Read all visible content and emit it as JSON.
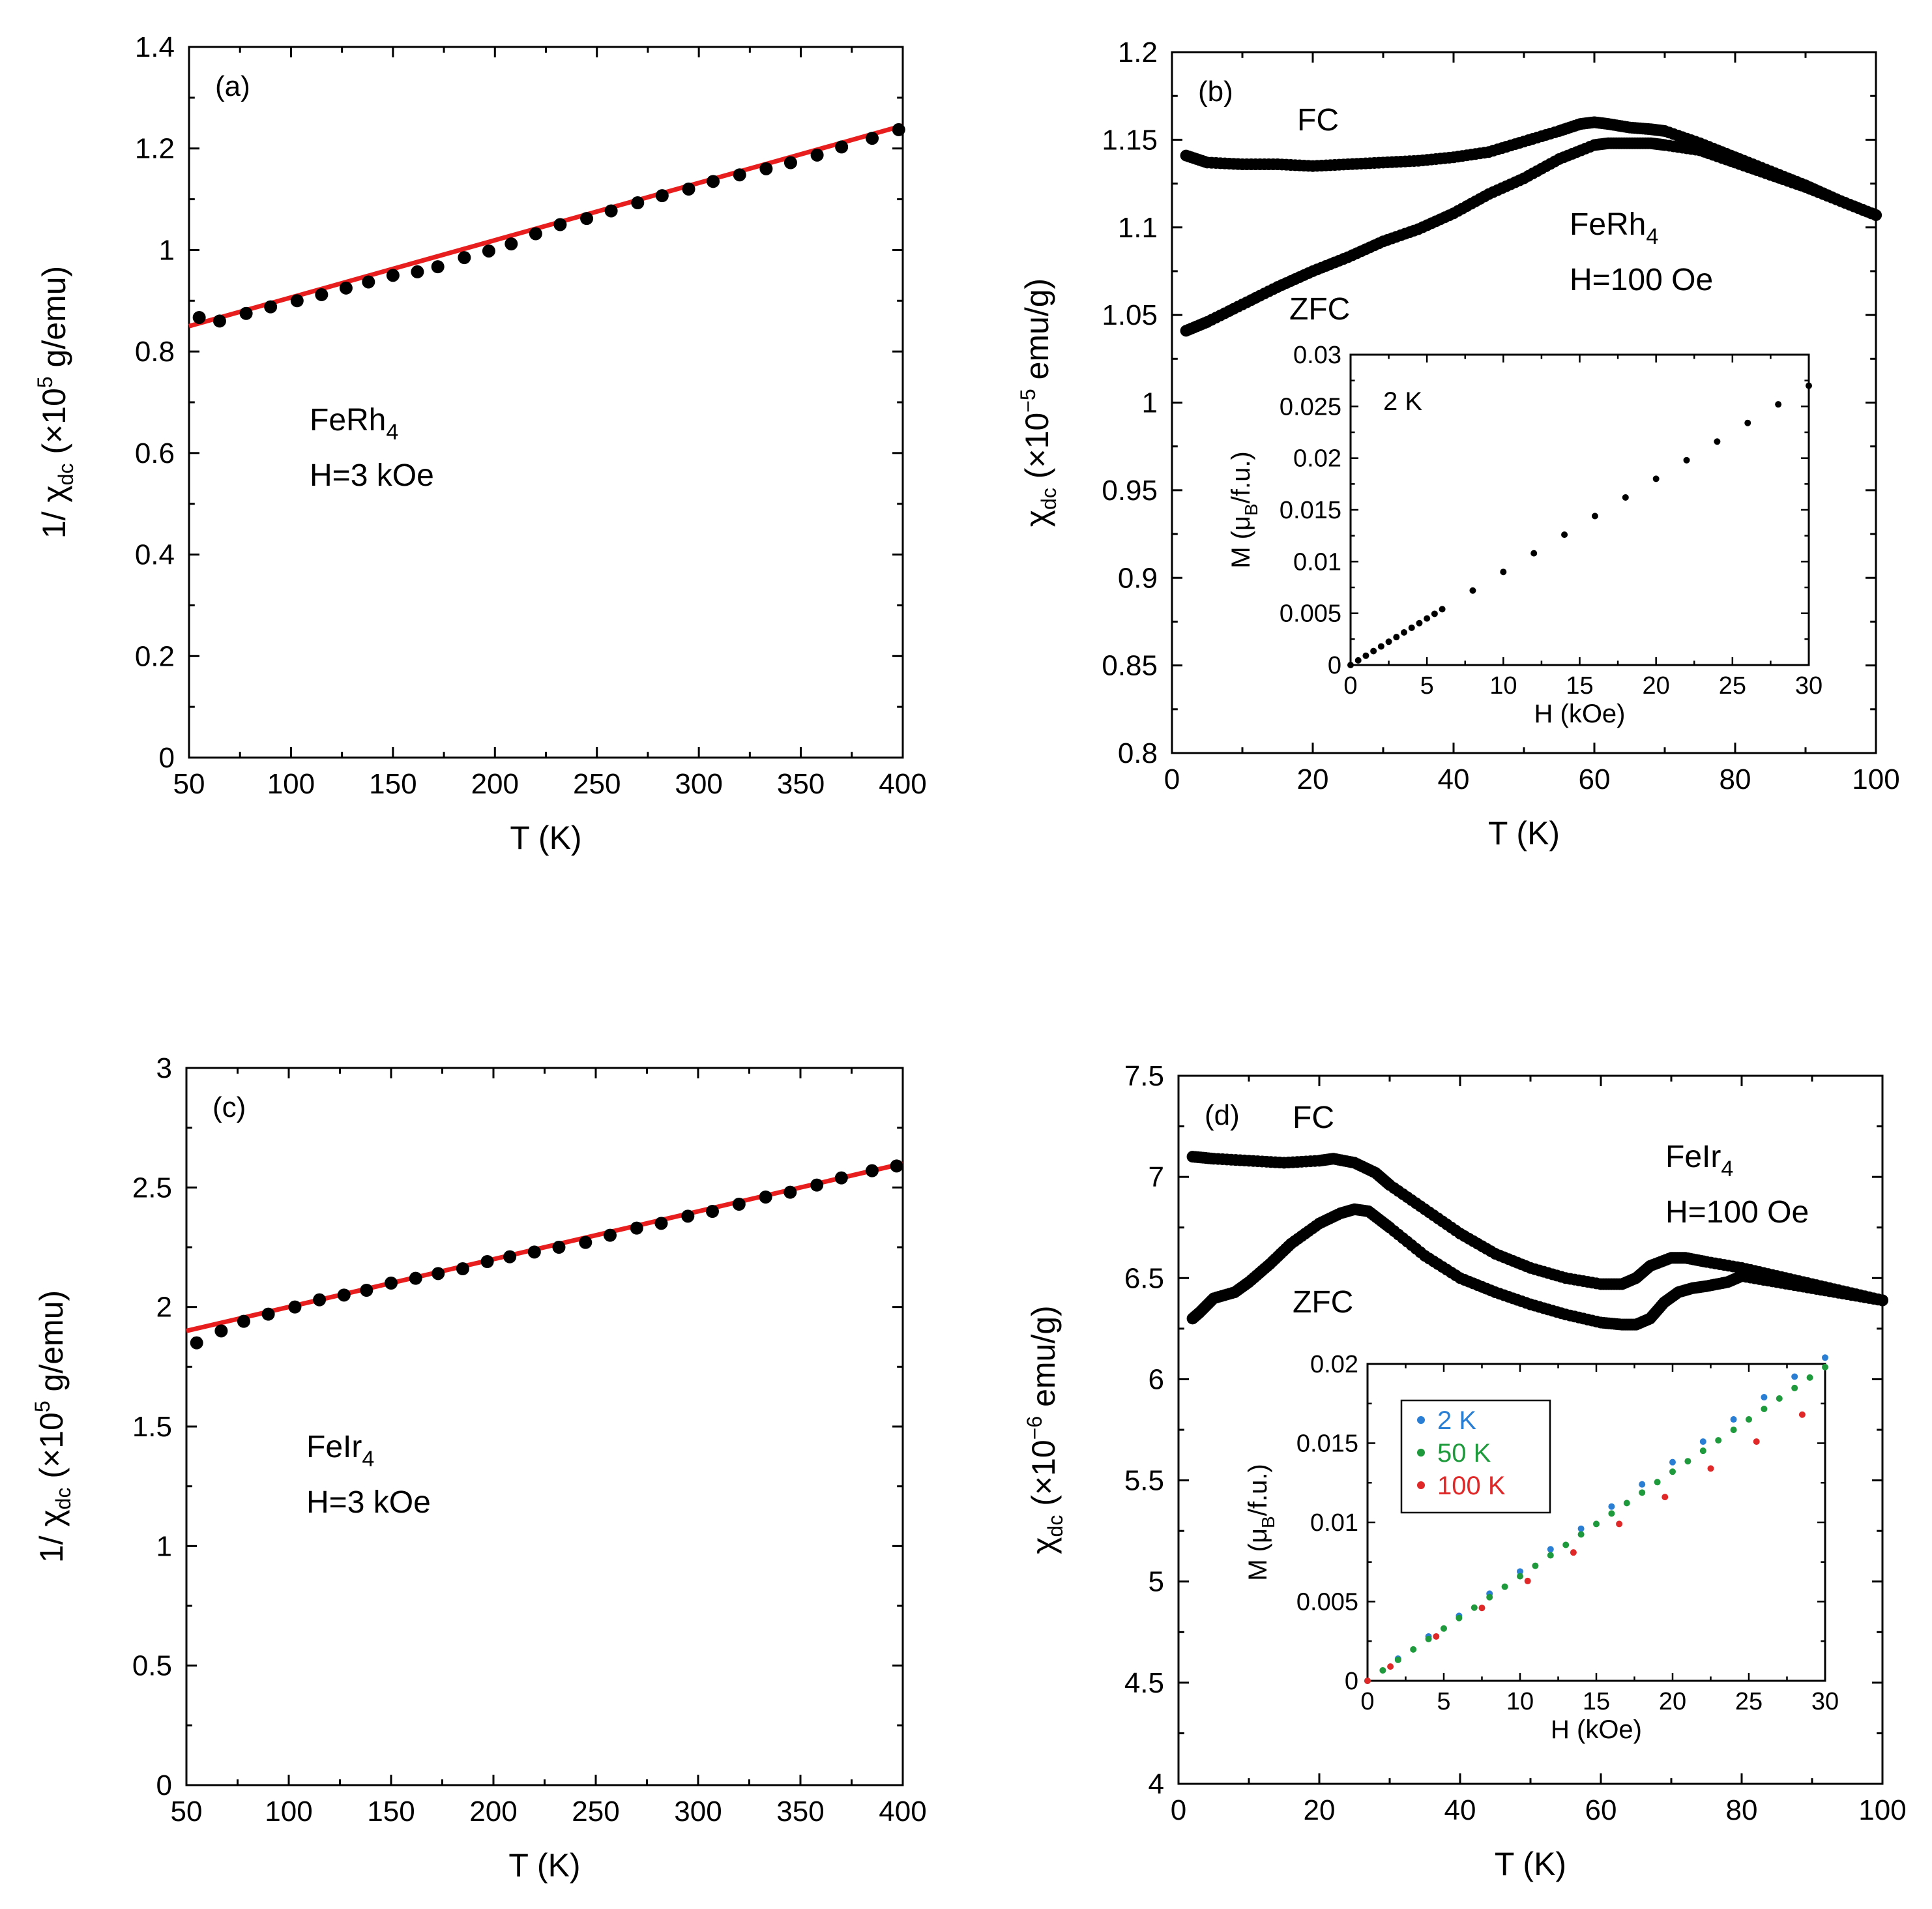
{
  "chart_data": [
    {
      "id": "a",
      "type": "scatter",
      "panel_label": "(a)",
      "xlabel": "T (K)",
      "ylabel": "1/ χ_dc (×10^5 g/emu)",
      "ylabel_parts": {
        "pre": "1/ χ",
        "sub": "dc",
        "mid": " (×10",
        "sup": "5",
        "post": " g/emu)"
      },
      "xlim": [
        50,
        400
      ],
      "ylim": [
        0,
        1.4
      ],
      "xticks": [
        "50",
        "100",
        "150",
        "200",
        "250",
        "300",
        "350",
        "400"
      ],
      "yticks": [
        "0",
        "0.2",
        "0.4",
        "0.6",
        "0.8",
        "1",
        "1.2",
        "1.4"
      ],
      "annotation": {
        "compound": "FeRh",
        "subscript": "4",
        "field": "H=3 kOe"
      },
      "series": [
        {
          "name": "data",
          "color": "#000000",
          "x": [
            55,
            65,
            78,
            90,
            103,
            115,
            127,
            138,
            150,
            162,
            172,
            185,
            197,
            208,
            220,
            232,
            245,
            257,
            270,
            282,
            295,
            307,
            320,
            333,
            345,
            358,
            370,
            385,
            398
          ],
          "y": [
            0.867,
            0.86,
            0.875,
            0.888,
            0.9,
            0.912,
            0.925,
            0.937,
            0.95,
            0.957,
            0.967,
            0.985,
            0.998,
            1.012,
            1.032,
            1.05,
            1.062,
            1.077,
            1.093,
            1.107,
            1.12,
            1.135,
            1.148,
            1.16,
            1.172,
            1.187,
            1.203,
            1.22,
            1.237
          ]
        }
      ],
      "fit": {
        "color": "#e81e1e",
        "x": [
          50,
          400
        ],
        "y": [
          0.85,
          1.245
        ]
      }
    },
    {
      "id": "b",
      "type": "scatter",
      "panel_label": "(b)",
      "xlabel": "T (K)",
      "ylabel": "χ_dc (×10^-5 emu/g)",
      "ylabel_parts": {
        "pre": "χ",
        "sub": "dc",
        "mid": " (×10",
        "sup": "−5",
        "post": " emu/g)"
      },
      "xlim": [
        0,
        100
      ],
      "ylim": [
        0.8,
        1.2
      ],
      "xticks": [
        "0",
        "20",
        "40",
        "60",
        "80",
        "100"
      ],
      "yticks": [
        "0.8",
        "0.85",
        "0.9",
        "0.95",
        "1",
        "1.05",
        "1.1",
        "1.15",
        "1.2"
      ],
      "labels": {
        "fc": "FC",
        "zfc": "ZFC"
      },
      "annotation": {
        "compound": "FeRh",
        "subscript": "4",
        "field": "H=100 Oe"
      },
      "series": [
        {
          "name": "FC",
          "color": "#000000",
          "x": [
            2,
            5,
            10,
            15,
            20,
            25,
            30,
            35,
            40,
            45,
            50,
            55,
            58,
            60,
            62,
            65,
            68,
            70,
            75,
            80,
            85,
            90,
            95,
            100
          ],
          "y": [
            1.141,
            1.137,
            1.136,
            1.136,
            1.135,
            1.136,
            1.137,
            1.138,
            1.14,
            1.143,
            1.149,
            1.155,
            1.159,
            1.16,
            1.159,
            1.157,
            1.156,
            1.155,
            1.148,
            1.14,
            1.132,
            1.124,
            1.115,
            1.107
          ]
        },
        {
          "name": "ZFC",
          "color": "#000000",
          "x": [
            2,
            5,
            10,
            15,
            20,
            25,
            30,
            35,
            40,
            45,
            50,
            55,
            60,
            62,
            65,
            68,
            70,
            75,
            80,
            85,
            90,
            95,
            100
          ],
          "y": [
            1.041,
            1.046,
            1.056,
            1.066,
            1.075,
            1.083,
            1.092,
            1.099,
            1.108,
            1.119,
            1.128,
            1.139,
            1.147,
            1.148,
            1.148,
            1.148,
            1.147,
            1.144,
            1.137,
            1.13,
            1.123,
            1.115,
            1.107
          ]
        }
      ],
      "inset": {
        "label": "2 K",
        "xlabel": "H (kOe)",
        "ylabel": "M (μ_B/f.u.)",
        "ylabel_parts": {
          "pre": "M (μ",
          "sub": "B",
          "post": "/f.u.)"
        },
        "xlim": [
          0,
          30
        ],
        "ylim": [
          0,
          0.03
        ],
        "xticks": [
          "0",
          "5",
          "10",
          "15",
          "20",
          "25",
          "30"
        ],
        "yticks": [
          "0",
          "0.005",
          "0.01",
          "0.015",
          "0.02",
          "0.025",
          "0.03"
        ],
        "series": [
          {
            "name": "2 K",
            "color": "#000000",
            "x": [
              0,
              0.5,
              1,
              1.5,
              2,
              2.5,
              3,
              3.5,
              4,
              4.5,
              5,
              5.5,
              6,
              8,
              10,
              12,
              14,
              16,
              18,
              20,
              22,
              24,
              26,
              28,
              30
            ],
            "y": [
              0,
              0.00045,
              0.0009,
              0.00135,
              0.0018,
              0.00225,
              0.0027,
              0.00315,
              0.0036,
              0.00405,
              0.0045,
              0.00495,
              0.0054,
              0.0072,
              0.009,
              0.0108,
              0.0126,
              0.0144,
              0.0162,
              0.018,
              0.0198,
              0.0216,
              0.0234,
              0.0252,
              0.027
            ]
          }
        ]
      }
    },
    {
      "id": "c",
      "type": "scatter",
      "panel_label": "(c)",
      "xlabel": "T (K)",
      "ylabel": "1/ χ_dc (×10^5 g/emu)",
      "ylabel_parts": {
        "pre": "1/ χ",
        "sub": "dc",
        "mid": " (×10",
        "sup": "5",
        "post": " g/emu)"
      },
      "xlim": [
        50,
        400
      ],
      "ylim": [
        0,
        3
      ],
      "xticks": [
        "50",
        "100",
        "150",
        "200",
        "250",
        "300",
        "350",
        "400"
      ],
      "yticks": [
        "0",
        "0.5",
        "1",
        "1.5",
        "2",
        "2.5",
        "3"
      ],
      "annotation": {
        "compound": "FeIr",
        "subscript": "4",
        "field": "H=3 kOe"
      },
      "series": [
        {
          "name": "data",
          "color": "#000000",
          "x": [
            55,
            67,
            78,
            90,
            103,
            115,
            127,
            138,
            150,
            162,
            173,
            185,
            197,
            208,
            220,
            232,
            245,
            257,
            270,
            282,
            295,
            307,
            320,
            333,
            345,
            358,
            370,
            385,
            397
          ],
          "y": [
            1.85,
            1.9,
            1.94,
            1.97,
            2.0,
            2.03,
            2.05,
            2.07,
            2.1,
            2.12,
            2.14,
            2.16,
            2.19,
            2.21,
            2.23,
            2.25,
            2.27,
            2.3,
            2.33,
            2.35,
            2.38,
            2.4,
            2.43,
            2.46,
            2.48,
            2.51,
            2.54,
            2.57,
            2.59
          ]
        }
      ],
      "fit": {
        "color": "#e81e1e",
        "x": [
          50,
          400
        ],
        "y": [
          1.9,
          2.6
        ]
      }
    },
    {
      "id": "d",
      "type": "scatter",
      "panel_label": "(d)",
      "xlabel": "T (K)",
      "ylabel": "χ_dc (×10^-6 emu/g)",
      "ylabel_parts": {
        "pre": "χ",
        "sub": "dc",
        "mid": " (×10",
        "sup": "−6",
        "post": " emu/g)"
      },
      "xlim": [
        0,
        100
      ],
      "ylim": [
        4,
        7.5
      ],
      "xticks": [
        "0",
        "20",
        "40",
        "60",
        "80",
        "100"
      ],
      "yticks": [
        "4",
        "4.5",
        "5",
        "5.5",
        "6",
        "6.5",
        "7",
        "7.5"
      ],
      "labels": {
        "fc": "FC",
        "zfc": "ZFC"
      },
      "annotation": {
        "compound": "FeIr",
        "subscript": "4",
        "field": "H=100 Oe"
      },
      "series": [
        {
          "name": "FC",
          "color": "#000000",
          "x": [
            2,
            5,
            10,
            15,
            20,
            22,
            25,
            28,
            30,
            35,
            40,
            45,
            50,
            55,
            60,
            63,
            65,
            67,
            70,
            72,
            75,
            80,
            85,
            90,
            95,
            100
          ],
          "y": [
            7.1,
            7.09,
            7.08,
            7.07,
            7.08,
            7.09,
            7.07,
            7.02,
            6.96,
            6.84,
            6.72,
            6.62,
            6.55,
            6.5,
            6.47,
            6.47,
            6.5,
            6.56,
            6.6,
            6.6,
            6.58,
            6.55,
            6.51,
            6.47,
            6.43,
            6.39
          ]
        },
        {
          "name": "ZFC",
          "color": "#000000",
          "x": [
            2,
            3,
            5,
            8,
            10,
            13,
            16,
            20,
            23,
            25,
            27,
            30,
            35,
            40,
            45,
            50,
            55,
            60,
            63,
            65,
            67,
            69,
            71,
            73,
            75,
            78,
            80,
            85,
            90,
            95,
            100
          ],
          "y": [
            6.3,
            6.33,
            6.4,
            6.43,
            6.48,
            6.57,
            6.67,
            6.77,
            6.82,
            6.84,
            6.83,
            6.75,
            6.61,
            6.5,
            6.43,
            6.37,
            6.32,
            6.28,
            6.27,
            6.27,
            6.3,
            6.38,
            6.43,
            6.45,
            6.46,
            6.48,
            6.51,
            6.48,
            6.45,
            6.42,
            6.39
          ]
        }
      ],
      "inset": {
        "xlabel": "H (kOe)",
        "ylabel": "M (μ_B/f.u.)",
        "ylabel_parts": {
          "pre": "M (μ",
          "sub": "B",
          "post": "/f.u.)"
        },
        "xlim": [
          0,
          30
        ],
        "ylim": [
          0,
          0.02
        ],
        "xticks": [
          "0",
          "5",
          "10",
          "15",
          "20",
          "25",
          "30"
        ],
        "yticks": [
          "0",
          "0.005",
          "0.01",
          "0.015",
          "0.02"
        ],
        "legend": [
          {
            "label": "2 K",
            "color": "#2a7fd4"
          },
          {
            "label": "50 K",
            "color": "#1e9a3c"
          },
          {
            "label": "100 K",
            "color": "#e02828"
          }
        ],
        "series": [
          {
            "name": "2 K",
            "color": "#2a7fd4",
            "x": [
              0,
              2,
              4,
              6,
              8,
              10,
              12,
              14,
              16,
              18,
              20,
              22,
              24,
              26,
              28,
              30
            ],
            "y": [
              0,
              0.0014,
              0.0028,
              0.0041,
              0.0055,
              0.0069,
              0.0083,
              0.0096,
              0.011,
              0.0124,
              0.0138,
              0.0151,
              0.0165,
              0.0179,
              0.0192,
              0.0204
            ]
          },
          {
            "name": "50 K",
            "color": "#1e9a3c",
            "x": [
              0,
              1,
              2,
              3,
              4,
              5,
              6,
              7,
              8,
              9,
              10,
              11,
              12,
              13,
              14,
              15,
              16,
              17,
              18,
              19,
              20,
              21,
              22,
              23,
              24,
              25,
              26,
              27,
              28,
              29,
              30
            ],
            "y": [
              0,
              0.00066,
              0.00132,
              0.00198,
              0.00264,
              0.0033,
              0.00396,
              0.00462,
              0.00528,
              0.00594,
              0.0066,
              0.00726,
              0.00792,
              0.00858,
              0.00924,
              0.0099,
              0.01056,
              0.01122,
              0.01188,
              0.01254,
              0.0132,
              0.01386,
              0.01452,
              0.01518,
              0.01584,
              0.0165,
              0.01716,
              0.01782,
              0.01848,
              0.01914,
              0.0198
            ]
          },
          {
            "name": "100 K",
            "color": "#e02828",
            "x": [
              0,
              1.5,
              4.5,
              7.5,
              10.5,
              13.5,
              16.5,
              19.5,
              22.5,
              25.5,
              28.5
            ],
            "y": [
              0,
              0.0009,
              0.0028,
              0.0046,
              0.0063,
              0.0081,
              0.0099,
              0.0116,
              0.0134,
              0.0151,
              0.0168
            ]
          }
        ]
      }
    }
  ]
}
